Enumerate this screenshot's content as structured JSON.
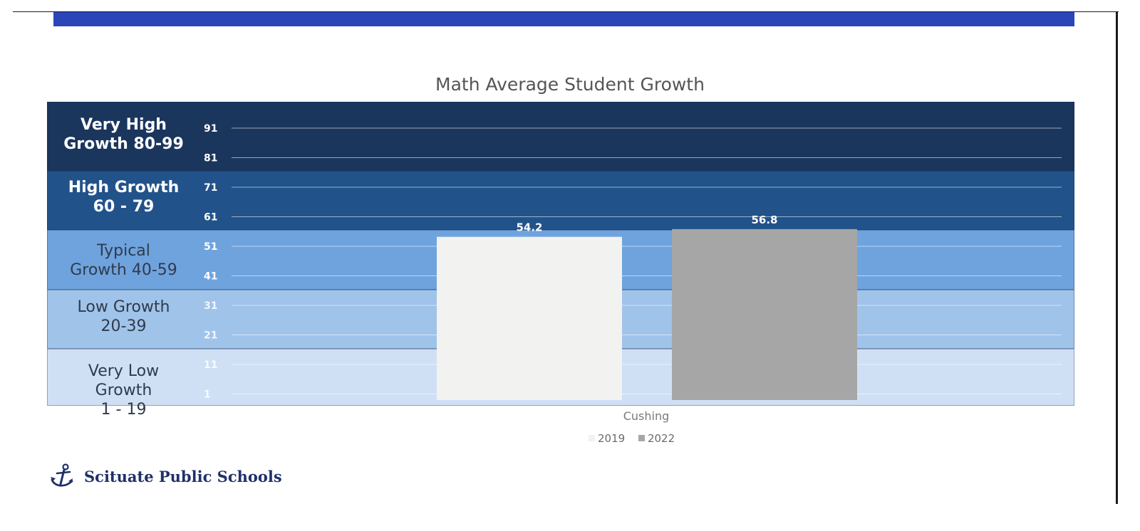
{
  "header": {
    "accent_color": "#2a46b8"
  },
  "chart_data": {
    "type": "bar",
    "title": "Math Average Student Growth",
    "categories": [
      "Cushing"
    ],
    "series": [
      {
        "name": "2019",
        "values": [
          54.2
        ],
        "color": "#f2f2f1"
      },
      {
        "name": "2022",
        "values": [
          56.8
        ],
        "color": "#a6a6a6"
      }
    ],
    "data_labels": [
      "54.2",
      "56.8"
    ],
    "y_ticks": [
      "91",
      "81",
      "71",
      "61",
      "51",
      "41",
      "31",
      "21",
      "11",
      "1"
    ],
    "ylim": [
      1,
      101
    ],
    "grid": true,
    "legend_position": "bottom",
    "bands": [
      {
        "label": "Very High\nGrowth 80-99",
        "color": "#1b365d",
        "text_style": "dark"
      },
      {
        "label": "High Growth\n60 - 79",
        "color": "#22528a",
        "text_style": "dark"
      },
      {
        "label": "Typical\nGrowth 40-59",
        "color": "#6fa3de",
        "text_style": "light"
      },
      {
        "label": "Low Growth\n20-39",
        "color": "#a0c3e9",
        "text_style": "light"
      },
      {
        "label": "Very Low\nGrowth\n1 - 19",
        "color": "#cfe0f5",
        "text_style": "light"
      }
    ]
  },
  "footer": {
    "logo_text": "Scituate Public Schools",
    "logo_icon": "anchor-icon"
  }
}
